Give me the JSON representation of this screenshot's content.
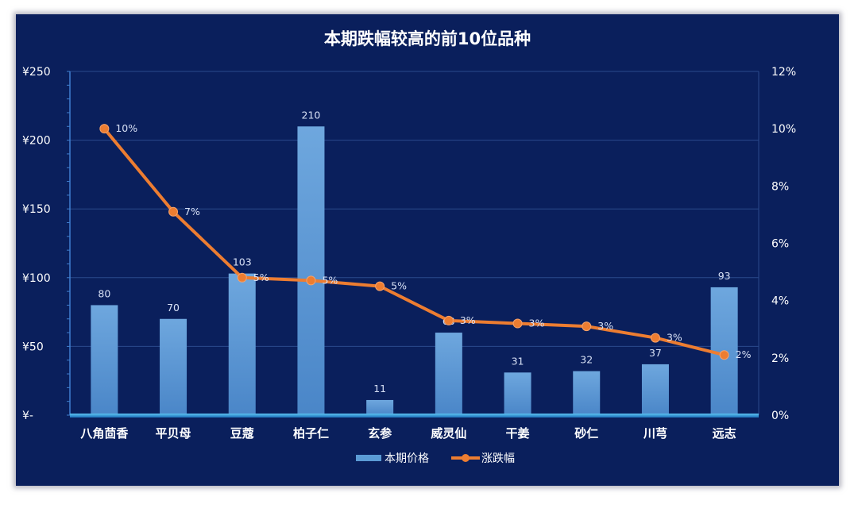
{
  "chart_data": {
    "type": "bar",
    "title": "本期跌幅较高的前10位品种",
    "categories": [
      "八角茴香",
      "平贝母",
      "豆蔻",
      "柏子仁",
      "玄参",
      "威灵仙",
      "干姜",
      "砂仁",
      "川芎",
      "远志"
    ],
    "series": [
      {
        "name": "本期价格",
        "type": "bar",
        "axis": "left",
        "values": [
          80,
          70,
          103,
          210,
          11,
          60,
          31,
          32,
          37,
          93
        ],
        "color": "#5b9bd5"
      },
      {
        "name": "涨跌幅",
        "type": "line",
        "axis": "right",
        "values": [
          0.1,
          0.071,
          0.048,
          0.047,
          0.045,
          0.033,
          0.032,
          0.031,
          0.027,
          0.021
        ],
        "labels": [
          "10%",
          "7%",
          "5%",
          "5%",
          "5%",
          "3%",
          "3%",
          "3%",
          "3%",
          "2%"
        ],
        "color": "#ed7d31"
      }
    ],
    "y_left": {
      "ylim": [
        0,
        250
      ],
      "ticks": [
        0,
        50,
        100,
        150,
        200,
        250
      ],
      "tick_labels": [
        "¥-",
        "¥50",
        "¥100",
        "¥150",
        "¥200",
        "¥250"
      ]
    },
    "y_right": {
      "ylim": [
        0,
        0.12
      ],
      "ticks": [
        0,
        0.02,
        0.04,
        0.06,
        0.08,
        0.1,
        0.12
      ],
      "tick_labels": [
        "0%",
        "2%",
        "4%",
        "6%",
        "8%",
        "10%",
        "12%"
      ]
    },
    "grid": true,
    "legend_position": "bottom",
    "colors": {
      "background": "#0a1f5c",
      "bar": "#5b9bd5",
      "line": "#ed7d31",
      "grid": "#2a4a8c"
    }
  }
}
